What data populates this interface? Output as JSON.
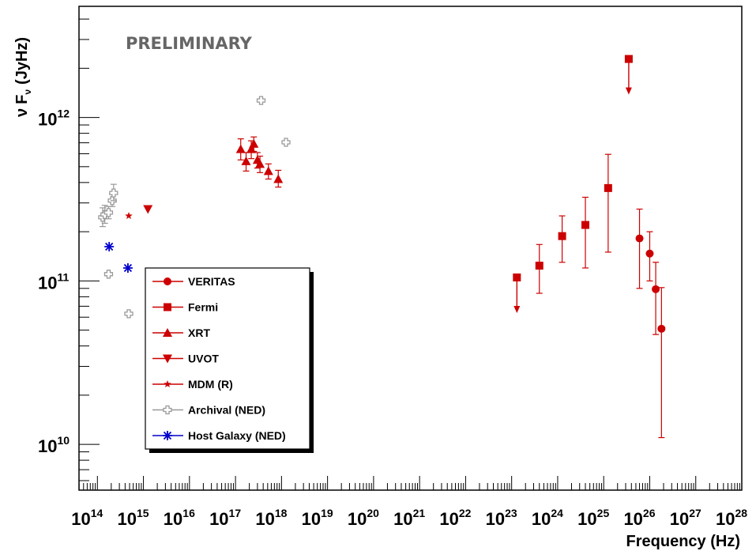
{
  "chart_data": {
    "type": "scatter",
    "title": "",
    "annotation": "PRELIMINARY",
    "xlabel": "Frequency (Hz)",
    "ylabel": "ν Fν (JyHz)",
    "ylabel_parts": {
      "nu": "ν",
      "F": "F",
      "sub": "ν",
      "unit": "(JyHz)"
    },
    "xscale": "log",
    "yscale": "log",
    "xlim_log10": [
      13.6,
      28.0
    ],
    "ylim_log10": [
      9.72,
      12.68
    ],
    "grid": false,
    "legend_position": "lower-left inside plot, with drop shadow",
    "x_ticks": [
      {
        "base": "10",
        "exp": "14"
      },
      {
        "base": "10",
        "exp": "15"
      },
      {
        "base": "10",
        "exp": "16"
      },
      {
        "base": "10",
        "exp": "17"
      },
      {
        "base": "10",
        "exp": "18"
      },
      {
        "base": "10",
        "exp": "19"
      },
      {
        "base": "10",
        "exp": "20"
      },
      {
        "base": "10",
        "exp": "21"
      },
      {
        "base": "10",
        "exp": "22"
      },
      {
        "base": "10",
        "exp": "23"
      },
      {
        "base": "10",
        "exp": "24"
      },
      {
        "base": "10",
        "exp": "25"
      },
      {
        "base": "10",
        "exp": "26"
      },
      {
        "base": "10",
        "exp": "27"
      },
      {
        "base": "10",
        "exp": "28"
      }
    ],
    "y_ticks": [
      {
        "base": "10",
        "exp": "10"
      },
      {
        "base": "10",
        "exp": "11"
      },
      {
        "base": "10",
        "exp": "12"
      }
    ],
    "series": [
      {
        "name": "VERITAS",
        "marker": "circle",
        "color": "#cc0000",
        "points": [
          {
            "x": 6e+25,
            "y": 182000000000.0,
            "ylo": 90000000000.0,
            "yhi": 275000000000.0
          },
          {
            "x": 1e+26,
            "y": 147000000000.0,
            "ylo": 100000000000.0,
            "yhi": 200000000000.0
          },
          {
            "x": 1.35e+26,
            "y": 89000000000.0,
            "ylo": 47000000000.0,
            "yhi": 130000000000.0
          },
          {
            "x": 1.8e+26,
            "y": 51000000000.0,
            "ylo": 11000000000.0,
            "yhi": 91000000000.0
          }
        ]
      },
      {
        "name": "Fermi",
        "marker": "square",
        "color": "#cc0000",
        "points": [
          {
            "x": 1.3e+23,
            "y": 105000000000.0,
            "upper_limit": true
          },
          {
            "x": 4e+23,
            "y": 124000000000.0,
            "ylo": 84000000000.0,
            "yhi": 167000000000.0
          },
          {
            "x": 1.25e+24,
            "y": 188000000000.0,
            "ylo": 130000000000.0,
            "yhi": 250000000000.0
          },
          {
            "x": 4e+24,
            "y": 220000000000.0,
            "ylo": 120000000000.0,
            "yhi": 325000000000.0
          },
          {
            "x": 1.25e+25,
            "y": 370000000000.0,
            "ylo": 150000000000.0,
            "yhi": 595000000000.0
          },
          {
            "x": 3.5e+25,
            "y": 2280000000000.0,
            "upper_limit": true
          }
        ]
      },
      {
        "name": "XRT",
        "marker": "triangle-up",
        "color": "#cc0000",
        "points": [
          {
            "x": 1.3e+17,
            "y": 640000000000.0,
            "ylo": 550000000000.0,
            "yhi": 740000000000.0
          },
          {
            "x": 1.7e+17,
            "y": 540000000000.0,
            "ylo": 470000000000.0,
            "yhi": 610000000000.0
          },
          {
            "x": 2.2e+17,
            "y": 640000000000.0,
            "ylo": 560000000000.0,
            "yhi": 720000000000.0
          },
          {
            "x": 2.5e+17,
            "y": 690000000000.0,
            "ylo": 620000000000.0,
            "yhi": 760000000000.0
          },
          {
            "x": 3e+17,
            "y": 550000000000.0,
            "ylo": 490000000000.0,
            "yhi": 610000000000.0
          },
          {
            "x": 3.4e+17,
            "y": 520000000000.0,
            "ylo": 460000000000.0,
            "yhi": 580000000000.0
          },
          {
            "x": 5.2e+17,
            "y": 470000000000.0,
            "ylo": 420000000000.0,
            "yhi": 520000000000.0
          },
          {
            "x": 8.5e+17,
            "y": 420000000000.0,
            "ylo": 375000000000.0,
            "yhi": 475000000000.0
          }
        ]
      },
      {
        "name": "UVOT",
        "marker": "triangle-down",
        "color": "#cc0000",
        "points": [
          {
            "x": 1250000000000000.0,
            "y": 275000000000.0
          }
        ]
      },
      {
        "name": "MDM (R)",
        "marker": "star",
        "color": "#cc0000",
        "points": [
          {
            "x": 480000000000000.0,
            "y": 250000000000.0
          }
        ]
      },
      {
        "name": "Archival (NED)",
        "marker": "open-cross",
        "color": "#999999",
        "points": [
          {
            "x": 130000000000000.0,
            "y": 245000000000.0,
            "ylo": 215000000000.0,
            "yhi": 280000000000.0
          },
          {
            "x": 145000000000000.0,
            "y": 255000000000.0,
            "ylo": 225000000000.0,
            "yhi": 290000000000.0
          },
          {
            "x": 175000000000000.0,
            "y": 262000000000.0,
            "ylo": 240000000000.0,
            "yhi": 285000000000.0
          },
          {
            "x": 210000000000000.0,
            "y": 310000000000.0,
            "ylo": 285000000000.0,
            "yhi": 340000000000.0
          },
          {
            "x": 225000000000000.0,
            "y": 345000000000.0,
            "ylo": 310000000000.0,
            "yhi": 390000000000.0
          },
          {
            "x": 175000000000000.0,
            "y": 110000000000.0
          },
          {
            "x": 480000000000000.0,
            "y": 63000000000.0
          },
          {
            "x": 3.6e+17,
            "y": 1270000000000.0
          },
          {
            "x": 1.25e+18,
            "y": 705000000000.0
          }
        ]
      },
      {
        "name": "Host Galaxy (NED)",
        "marker": "asterisk",
        "color": "#0000cc",
        "points": [
          {
            "x": 180000000000000.0,
            "y": 162000000000.0
          },
          {
            "x": 460000000000000.0,
            "y": 120000000000.0
          }
        ]
      }
    ]
  }
}
